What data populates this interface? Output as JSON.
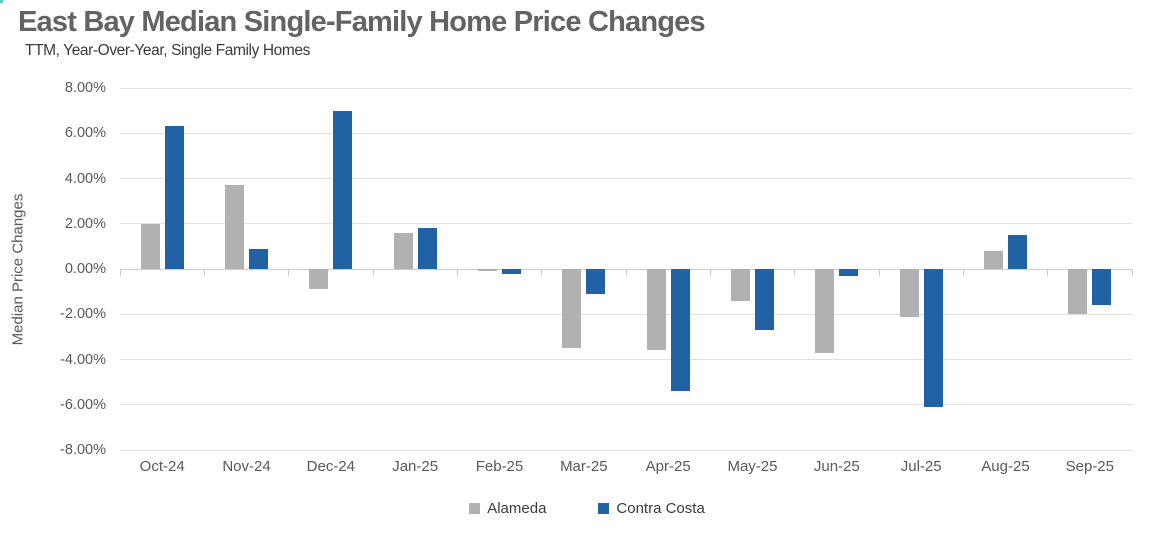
{
  "page": {
    "title": "East Bay Median Single-Family Home Price Changes",
    "subtitle": "TTM, Year-Over-Year, Single Family Homes"
  },
  "chart_data": {
    "type": "bar",
    "title": "East Bay Median Single-Family Home Price Changes",
    "subtitle": "TTM, Year-Over-Year, Single Family Homes",
    "xlabel": "",
    "ylabel": "Median Price Changes",
    "ylim": [
      -8,
      8
    ],
    "ytick_step": 2,
    "ytick_decimals": 2,
    "ytick_suffix": "%",
    "grid": true,
    "legend_position": "bottom",
    "categories": [
      "Oct-24",
      "Nov-24",
      "Dec-24",
      "Jan-25",
      "Feb-25",
      "Mar-25",
      "Apr-25",
      "May-25",
      "Jun-25",
      "Jul-25",
      "Aug-25",
      "Sep-25"
    ],
    "series": [
      {
        "name": "Alameda",
        "color": "#b1b1b1",
        "values": [
          2.0,
          3.7,
          -0.9,
          1.6,
          -0.1,
          -3.5,
          -3.6,
          -1.4,
          -3.7,
          -2.1,
          0.8,
          -2.0
        ]
      },
      {
        "name": "Contra Costa",
        "color": "#2062a3",
        "values": [
          6.3,
          0.9,
          7.0,
          1.8,
          -0.2,
          -1.1,
          -5.4,
          -2.7,
          -0.3,
          -6.1,
          1.5,
          -1.6
        ]
      }
    ]
  },
  "colors": {
    "title": "#636363",
    "subtitle": "#3b3b3b",
    "axis_text": "#595959",
    "gridline": "#e0e0e0",
    "axis_line": "#cdcdcd",
    "corner_artifact": "#5fc8c5"
  }
}
